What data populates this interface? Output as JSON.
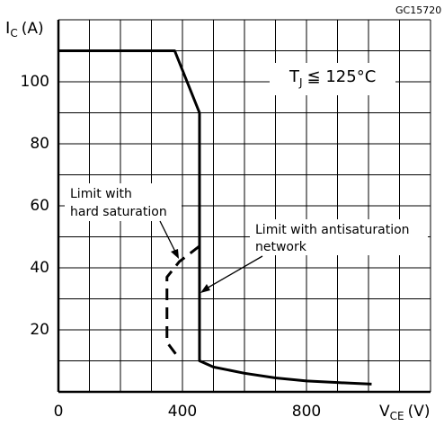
{
  "chart_data": {
    "type": "line",
    "code": "GC15720",
    "ylabel": {
      "main": "I",
      "sub": "C",
      "unit": "(A)"
    },
    "xlabel": {
      "main": "V",
      "sub": "CE",
      "unit": "(V)"
    },
    "condition": {
      "main": "T",
      "sub": "J",
      "rest": "≦ 125°C"
    },
    "annotations": [
      {
        "lines": [
          "Limit with",
          "hard saturation"
        ]
      },
      {
        "lines": [
          "Limit with antisaturation",
          "network"
        ]
      }
    ],
    "xlim": [
      0,
      1200
    ],
    "ylim": [
      0,
      120
    ],
    "xticks": [
      0,
      400,
      800
    ],
    "yticks": [
      20,
      40,
      60,
      80,
      100
    ],
    "xgrid": [
      100,
      200,
      300,
      400,
      500,
      600,
      700,
      800,
      900,
      1000,
      1100,
      1200
    ],
    "ygrid": [
      10,
      20,
      30,
      40,
      50,
      60,
      70,
      80,
      90,
      100,
      110,
      120
    ],
    "series": [
      {
        "style": "solid",
        "color": "#000000",
        "x": [
          0,
          375,
          455,
          455,
          500,
          600,
          700,
          800,
          900,
          1010
        ],
        "values": [
          110,
          110,
          90,
          10,
          8,
          6,
          4.5,
          3.5,
          3,
          2.5
        ]
      },
      {
        "style": "dashed",
        "color": "#000000",
        "x": [
          455,
          390,
          350,
          350,
          380
        ],
        "values": [
          47,
          42,
          37,
          16,
          12
        ]
      }
    ]
  }
}
